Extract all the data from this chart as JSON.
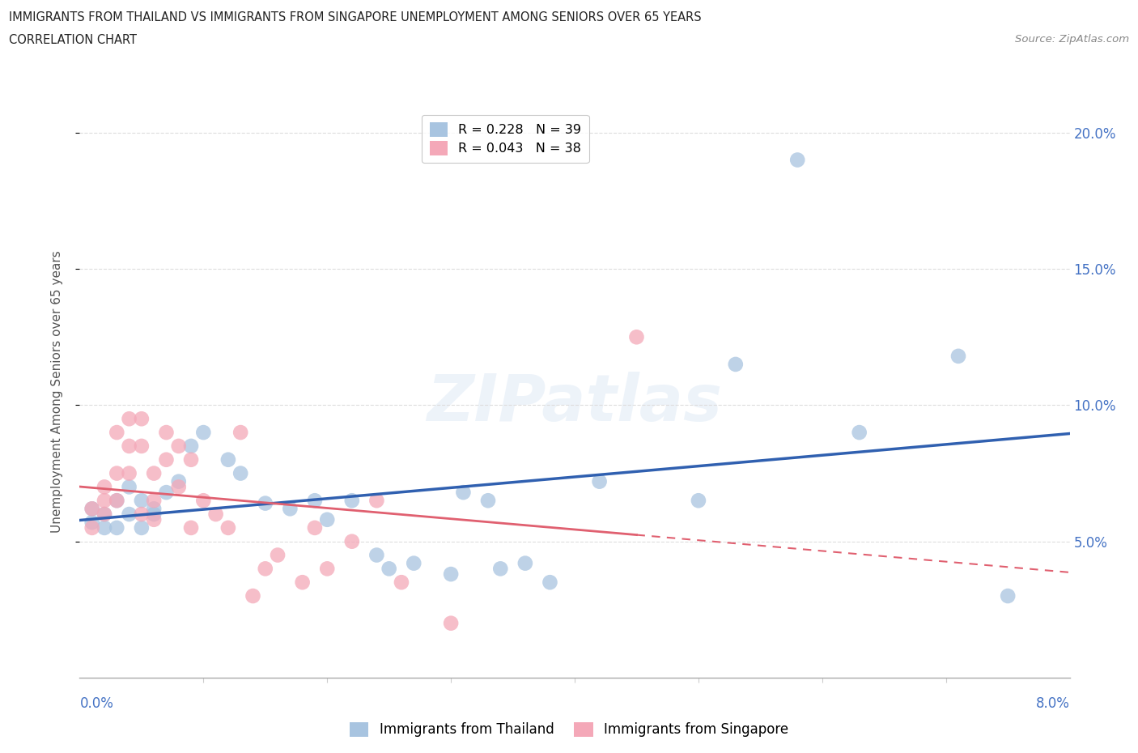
{
  "title_line1": "IMMIGRANTS FROM THAILAND VS IMMIGRANTS FROM SINGAPORE UNEMPLOYMENT AMONG SENIORS OVER 65 YEARS",
  "title_line2": "CORRELATION CHART",
  "source": "Source: ZipAtlas.com",
  "ylabel": "Unemployment Among Seniors over 65 years",
  "watermark": "ZIPatlas",
  "legend_thailand": "R = 0.228   N = 39",
  "legend_singapore": "R = 0.043   N = 38",
  "thailand_color": "#a8c4e0",
  "singapore_color": "#f4a8b8",
  "trend_thailand_color": "#3060b0",
  "trend_singapore_color": "#e06070",
  "xlim": [
    0.0,
    0.08
  ],
  "ylim": [
    0.0,
    0.21
  ],
  "yticks": [
    0.05,
    0.1,
    0.15,
    0.2
  ],
  "ytick_labels": [
    "5.0%",
    "10.0%",
    "15.0%",
    "20.0%"
  ],
  "background_color": "#ffffff",
  "thailand_x": [
    0.001,
    0.001,
    0.002,
    0.002,
    0.003,
    0.003,
    0.004,
    0.004,
    0.005,
    0.005,
    0.006,
    0.006,
    0.007,
    0.008,
    0.009,
    0.01,
    0.012,
    0.013,
    0.015,
    0.017,
    0.019,
    0.02,
    0.022,
    0.024,
    0.025,
    0.027,
    0.03,
    0.031,
    0.033,
    0.034,
    0.036,
    0.038,
    0.042,
    0.05,
    0.053,
    0.058,
    0.063,
    0.071,
    0.075
  ],
  "thailand_y": [
    0.057,
    0.062,
    0.06,
    0.055,
    0.055,
    0.065,
    0.06,
    0.07,
    0.065,
    0.055,
    0.06,
    0.062,
    0.068,
    0.072,
    0.085,
    0.09,
    0.08,
    0.075,
    0.064,
    0.062,
    0.065,
    0.058,
    0.065,
    0.045,
    0.04,
    0.042,
    0.038,
    0.068,
    0.065,
    0.04,
    0.042,
    0.035,
    0.072,
    0.065,
    0.115,
    0.19,
    0.09,
    0.118,
    0.03
  ],
  "singapore_x": [
    0.001,
    0.001,
    0.002,
    0.002,
    0.002,
    0.003,
    0.003,
    0.003,
    0.004,
    0.004,
    0.004,
    0.005,
    0.005,
    0.005,
    0.006,
    0.006,
    0.006,
    0.007,
    0.007,
    0.008,
    0.008,
    0.009,
    0.009,
    0.01,
    0.011,
    0.012,
    0.013,
    0.014,
    0.015,
    0.016,
    0.018,
    0.019,
    0.02,
    0.022,
    0.024,
    0.026,
    0.03,
    0.045
  ],
  "singapore_y": [
    0.062,
    0.055,
    0.07,
    0.065,
    0.06,
    0.09,
    0.075,
    0.065,
    0.095,
    0.085,
    0.075,
    0.095,
    0.085,
    0.06,
    0.075,
    0.065,
    0.058,
    0.09,
    0.08,
    0.085,
    0.07,
    0.08,
    0.055,
    0.065,
    0.06,
    0.055,
    0.09,
    0.03,
    0.04,
    0.045,
    0.035,
    0.055,
    0.04,
    0.05,
    0.065,
    0.035,
    0.02,
    0.125
  ]
}
